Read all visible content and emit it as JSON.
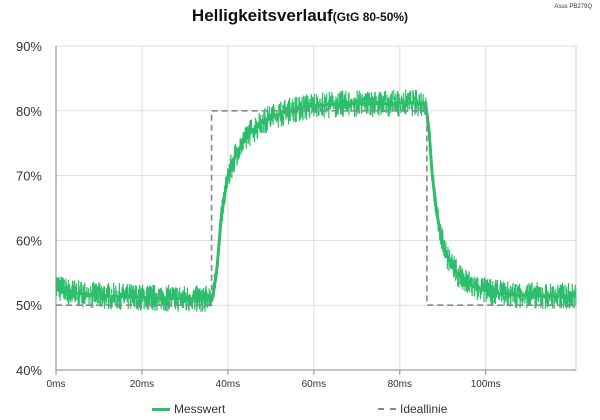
{
  "brand": "Asus PB279Q",
  "chart_data": {
    "type": "line",
    "title": "Helligkeitsverlauf",
    "subtitle": "(GtG 80-50%)",
    "xlabel": "",
    "ylabel": "",
    "xlim": [
      0,
      121
    ],
    "ylim": [
      40,
      90
    ],
    "x_ticks": [
      0,
      20,
      40,
      60,
      80,
      100
    ],
    "x_tick_labels": [
      "0ms",
      "20ms",
      "40ms",
      "60ms",
      "80ms",
      "100ms"
    ],
    "y_ticks": [
      40,
      50,
      60,
      70,
      80,
      90
    ],
    "y_tick_labels": [
      "40%",
      "50%",
      "60%",
      "70%",
      "80%",
      "90%"
    ],
    "grid": true,
    "legend_position": "bottom",
    "series": [
      {
        "name": "Messwert",
        "style": "solid-band",
        "color": "#2dbe6c",
        "x": [
          0,
          2,
          5,
          10,
          20,
          30,
          35,
          36.5,
          37.5,
          38.5,
          40,
          42,
          45,
          48,
          52,
          56,
          60,
          65,
          70,
          75,
          80,
          83,
          86,
          86.8,
          87.5,
          88.5,
          90,
          92,
          95,
          98,
          102,
          106,
          110,
          115,
          121
        ],
        "y": [
          53,
          52.2,
          51.8,
          51.5,
          51.2,
          51,
          51,
          51.2,
          56,
          64,
          70,
          73.5,
          76.5,
          78.3,
          79.5,
          80.3,
          80.8,
          81,
          81.1,
          81.1,
          81.2,
          81.2,
          81.2,
          77,
          70.5,
          64.5,
          59.5,
          56,
          53.8,
          52.6,
          51.9,
          51.6,
          51.5,
          51.4,
          51.4
        ],
        "band": 1.6
      },
      {
        "name": "Ideallinie",
        "style": "dashed",
        "color": "#888888",
        "x": [
          0,
          36.2,
          36.2,
          86.3,
          86.3,
          121
        ],
        "y": [
          50,
          50,
          80,
          80,
          50,
          50
        ]
      }
    ]
  }
}
